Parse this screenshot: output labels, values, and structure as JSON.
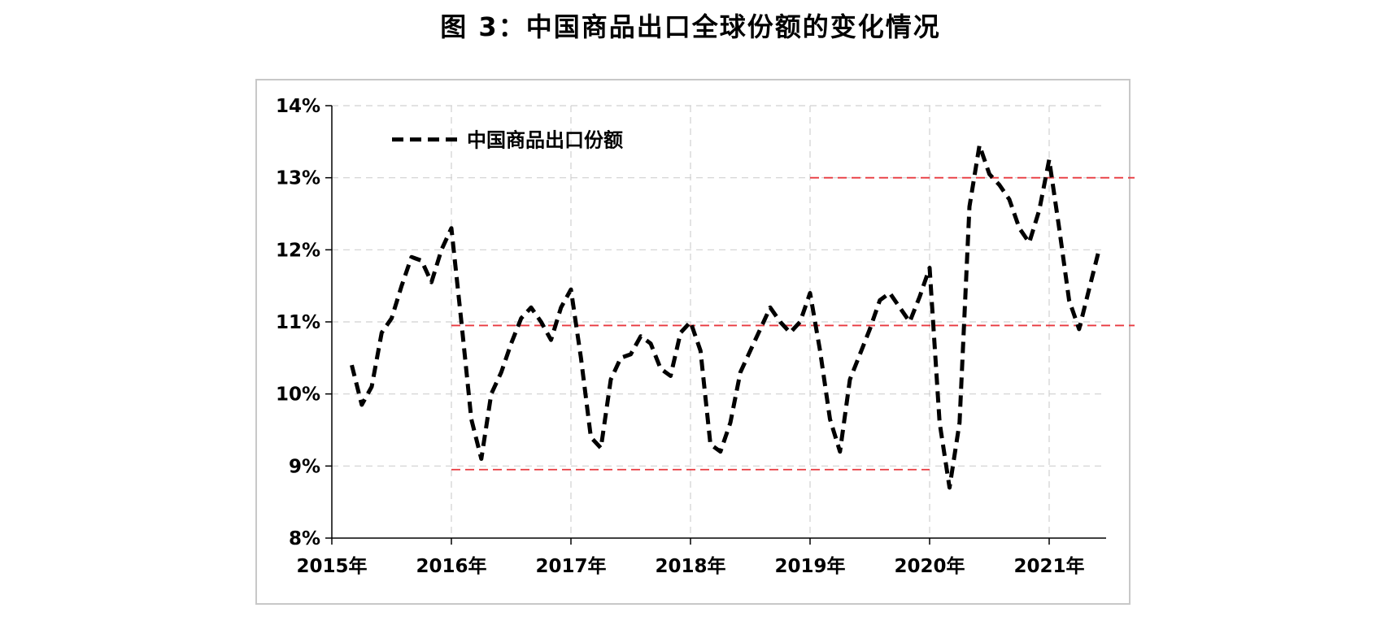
{
  "title": "图 3：中国商品出口全球份额的变化情况",
  "chart_data": {
    "type": "line",
    "title": "图 3：中国商品出口全球份额的变化情况",
    "xlabel": "",
    "ylabel": "",
    "ylim": [
      8,
      14
    ],
    "y_ticks": [
      "8%",
      "9%",
      "10%",
      "11%",
      "12%",
      "13%",
      "14%"
    ],
    "x_ticks": [
      "2015年",
      "2016年",
      "2017年",
      "2018年",
      "2019年",
      "2020年",
      "2021年"
    ],
    "grid": true,
    "legend_position": "top-left",
    "series": [
      {
        "name": "中国商品出口份额",
        "style": "dashed",
        "color": "#000000",
        "x": [
          "2015-03",
          "2015-04",
          "2015-05",
          "2015-06",
          "2015-07",
          "2015-08",
          "2015-09",
          "2015-10",
          "2015-11",
          "2015-12",
          "2016-01",
          "2016-02",
          "2016-03",
          "2016-04",
          "2016-05",
          "2016-06",
          "2016-07",
          "2016-08",
          "2016-09",
          "2016-10",
          "2016-11",
          "2016-12",
          "2017-01",
          "2017-02",
          "2017-03",
          "2017-04",
          "2017-05",
          "2017-06",
          "2017-07",
          "2017-08",
          "2017-09",
          "2017-10",
          "2017-11",
          "2017-12",
          "2018-01",
          "2018-02",
          "2018-03",
          "2018-04",
          "2018-05",
          "2018-06",
          "2018-07",
          "2018-08",
          "2018-09",
          "2018-10",
          "2018-11",
          "2018-12",
          "2019-01",
          "2019-02",
          "2019-03",
          "2019-04",
          "2019-05",
          "2019-06",
          "2019-07",
          "2019-08",
          "2019-09",
          "2019-10",
          "2019-11",
          "2019-12",
          "2020-01",
          "2020-02",
          "2020-03",
          "2020-04",
          "2020-05",
          "2020-06",
          "2020-07",
          "2020-08",
          "2020-09",
          "2020-10",
          "2020-11",
          "2020-12",
          "2021-01",
          "2021-02",
          "2021-03",
          "2021-04",
          "2021-05",
          "2021-06"
        ],
        "values": [
          10.4,
          9.85,
          10.1,
          10.85,
          11.05,
          11.5,
          11.9,
          11.85,
          11.55,
          12.0,
          12.3,
          11.0,
          9.65,
          9.1,
          10.0,
          10.3,
          10.7,
          11.05,
          11.2,
          11.0,
          10.75,
          11.2,
          11.45,
          10.5,
          9.4,
          9.25,
          10.2,
          10.5,
          10.55,
          10.8,
          10.7,
          10.35,
          10.25,
          10.85,
          11.0,
          10.6,
          9.3,
          9.2,
          9.6,
          10.3,
          10.6,
          10.9,
          11.2,
          11.0,
          10.85,
          11.0,
          11.4,
          10.6,
          9.65,
          9.2,
          10.2,
          10.55,
          10.9,
          11.3,
          11.4,
          11.2,
          11.0,
          11.35,
          11.75,
          9.6,
          8.7,
          9.6,
          12.6,
          13.45,
          13.05,
          12.9,
          12.7,
          12.3,
          12.1,
          12.55,
          13.25,
          12.3,
          11.3,
          10.9,
          11.45,
          12.0
        ]
      }
    ],
    "reference_lines": [
      {
        "y": 13.0,
        "x_start": "2019-01",
        "x_end": "2021-06",
        "color": "#e8393f",
        "style": "dashed"
      },
      {
        "y": 10.95,
        "x_start": "2016-01",
        "x_end": "2021-06",
        "color": "#e8393f",
        "style": "dashed"
      },
      {
        "y": 8.95,
        "x_start": "2016-01",
        "x_end": "2020-01",
        "color": "#e8393f",
        "style": "dashed"
      }
    ]
  }
}
